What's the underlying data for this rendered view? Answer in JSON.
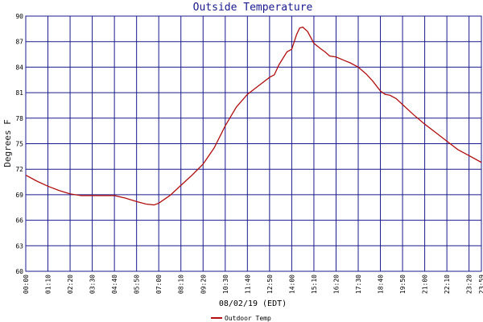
{
  "chart_data": {
    "type": "line",
    "title": "Outside Temperature",
    "ylabel": "Degrees F",
    "xlabel": "08/02/19 (EDT)",
    "ylim": [
      60,
      90
    ],
    "yticks": [
      "60",
      "63",
      "66",
      "69",
      "72",
      "75",
      "78",
      "81",
      "84",
      "87",
      "90"
    ],
    "xticks": [
      "00:00",
      "01:10",
      "02:20",
      "03:30",
      "04:40",
      "05:50",
      "07:00",
      "08:10",
      "09:20",
      "10:30",
      "11:40",
      "12:50",
      "14:00",
      "15:10",
      "16:20",
      "17:30",
      "18:40",
      "19:50",
      "21:00",
      "22:10",
      "23:20",
      "23:59"
    ],
    "grid": true,
    "line_color": "#b01010",
    "grid_color": "#1a1a8c",
    "series": [
      {
        "name": "Outdoor Temp",
        "x": [
          "00:00",
          "00:35",
          "01:10",
          "01:45",
          "02:20",
          "02:55",
          "03:30",
          "04:05",
          "04:40",
          "05:15",
          "05:50",
          "06:20",
          "06:45",
          "07:00",
          "07:35",
          "08:10",
          "08:45",
          "09:20",
          "09:55",
          "10:30",
          "11:05",
          "11:40",
          "12:15",
          "12:50",
          "13:05",
          "13:20",
          "13:45",
          "14:00",
          "14:15",
          "14:25",
          "14:35",
          "14:50",
          "15:10",
          "15:30",
          "15:45",
          "16:00",
          "16:20",
          "16:45",
          "17:05",
          "17:30",
          "17:55",
          "18:15",
          "18:40",
          "18:55",
          "19:10",
          "19:30",
          "19:50",
          "20:25",
          "21:00",
          "21:35",
          "22:10",
          "22:45",
          "23:20",
          "23:59"
        ],
        "values": [
          71.3,
          70.6,
          70.0,
          69.5,
          69.1,
          68.9,
          68.9,
          68.9,
          68.9,
          68.6,
          68.2,
          67.9,
          67.8,
          68.0,
          68.9,
          70.1,
          71.3,
          72.6,
          74.5,
          77.1,
          79.3,
          80.8,
          81.8,
          82.8,
          83.1,
          84.3,
          85.8,
          86.1,
          87.8,
          88.6,
          88.7,
          88.2,
          86.8,
          86.2,
          85.8,
          85.3,
          85.2,
          84.8,
          84.5,
          84.0,
          83.2,
          82.4,
          81.2,
          80.8,
          80.7,
          80.3,
          79.6,
          78.4,
          77.3,
          76.3,
          75.3,
          74.3,
          73.6,
          72.8
        ]
      }
    ]
  }
}
